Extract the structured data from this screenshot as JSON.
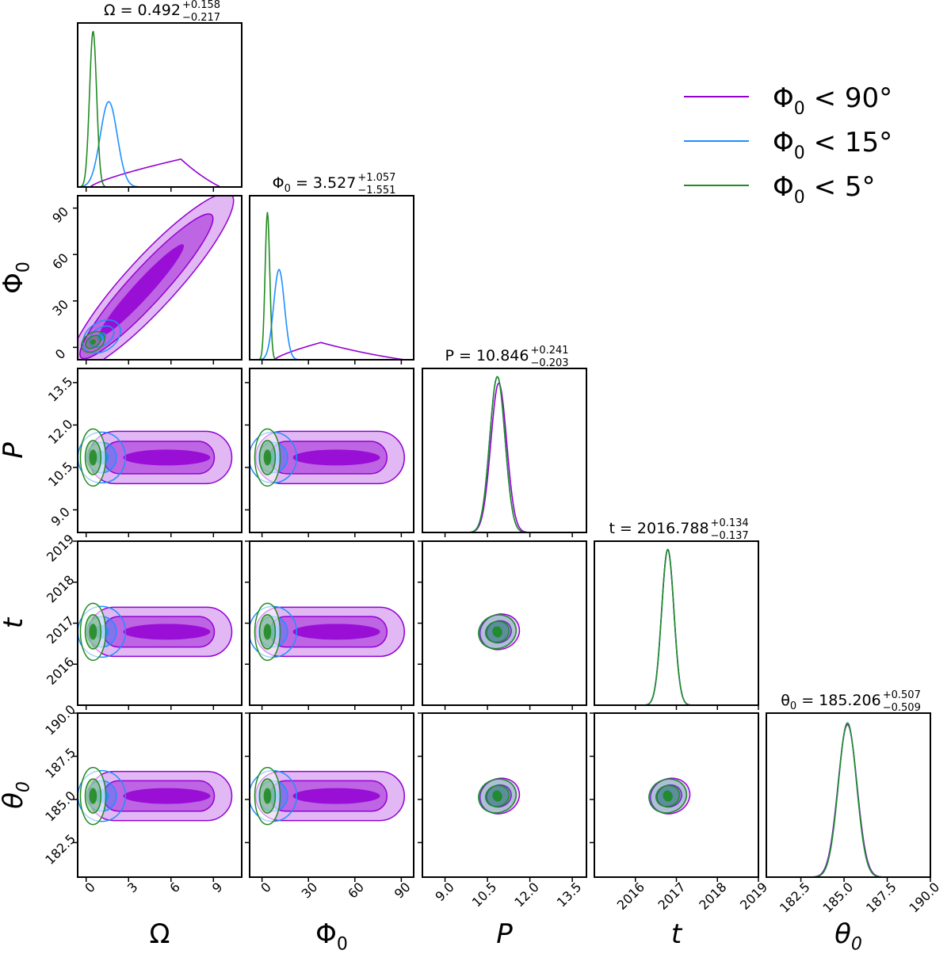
{
  "chart_data": {
    "type": "corner",
    "title": "",
    "parameters": [
      {
        "key": "omega",
        "label": "Ω",
        "range": [
          -0.6,
          11.0
        ],
        "ticks": [
          0,
          3,
          6,
          9
        ],
        "tick_labels": [
          "0",
          "3",
          "6",
          "9"
        ],
        "summary": {
          "name": "Ω",
          "value": "0.492",
          "plus": "+0.158",
          "minus": "−0.217"
        }
      },
      {
        "key": "phi0",
        "label": "Φ0",
        "range": [
          -8,
          98
        ],
        "ticks": [
          0,
          30,
          60,
          90
        ],
        "tick_labels": [
          "0",
          "30",
          "60",
          "90"
        ],
        "summary": {
          "name": "Φ0",
          "value": "3.527",
          "plus": "+1.057",
          "minus": "−1.551"
        }
      },
      {
        "key": "P",
        "label": "P",
        "range": [
          8.2,
          14.0
        ],
        "ticks": [
          9.0,
          10.5,
          12.0,
          13.5
        ],
        "tick_labels": [
          "9.0",
          "10.5",
          "12.0",
          "13.5"
        ],
        "summary": {
          "name": "P",
          "value": "10.846",
          "plus": "+0.241",
          "minus": "−0.203"
        }
      },
      {
        "key": "t",
        "label": "t",
        "range": [
          2015.0,
          2019.0
        ],
        "ticks": [
          2016,
          2017,
          2018,
          2019
        ],
        "tick_labels": [
          "2016",
          "2017",
          "2018",
          "2019"
        ],
        "summary": {
          "name": "t",
          "value": "2016.788",
          "plus": "+0.134",
          "minus": "−0.137"
        }
      },
      {
        "key": "theta0",
        "label": "θ0",
        "range": [
          180.5,
          190.0
        ],
        "ticks": [
          182.5,
          185.0,
          187.5,
          190.0
        ],
        "tick_labels": [
          "182.5",
          "185.0",
          "187.5",
          "190.0"
        ],
        "summary": {
          "name": "θ0",
          "value": "185.206",
          "plus": "+0.507",
          "minus": "−0.509"
        }
      }
    ],
    "legend": {
      "position": "top-right",
      "entries": [
        {
          "name": "Φ0 < 90°",
          "color": "#9400d3"
        },
        {
          "name": "Φ0 < 15°",
          "color": "#1e90ff"
        },
        {
          "name": "Φ0 < 5°",
          "color": "#228b22"
        }
      ]
    },
    "series": [
      {
        "name": "Φ0 < 90°",
        "color": "#9400d3",
        "hist": {
          "omega": {
            "type": "tri",
            "start": 0.3,
            "peak": 6.7,
            "end": 9.5,
            "height": 0.17
          },
          "phi0": {
            "type": "tri",
            "start": 8,
            "peak": 38,
            "end": 92,
            "height": 0.105
          },
          "P": {
            "type": "gauss",
            "mu": 10.9,
            "sigma": 0.28,
            "height": 0.91
          },
          "t": {
            "type": "gauss",
            "mu": 2016.79,
            "sigma": 0.15,
            "height": 0.95
          },
          "theta0": {
            "type": "gauss",
            "mu": 185.2,
            "sigma": 0.55,
            "height": 0.93
          }
        },
        "means": {
          "omega": 5.5,
          "phi0": 40,
          "P": 10.85,
          "t": 2016.79,
          "theta0": 185.2
        }
      },
      {
        "name": "Φ0 < 15°",
        "color": "#1e90ff",
        "hist": {
          "omega": {
            "type": "gauss",
            "mu": 1.6,
            "sigma": 0.6,
            "height": 0.52
          },
          "phi0": {
            "type": "gauss",
            "mu": 11,
            "sigma": 3.5,
            "height": 0.55
          },
          "P": {
            "type": "gauss",
            "mu": 10.85,
            "sigma": 0.27,
            "height": 0.95
          },
          "t": {
            "type": "gauss",
            "mu": 2016.79,
            "sigma": 0.15,
            "height": 0.95
          },
          "theta0": {
            "type": "gauss",
            "mu": 185.2,
            "sigma": 0.53,
            "height": 0.94
          }
        },
        "means": {
          "omega": 1.1,
          "phi0": 7,
          "P": 10.85,
          "t": 2016.79,
          "theta0": 185.2
        }
      },
      {
        "name": "Φ0 < 5°",
        "color": "#228b22",
        "hist": {
          "omega": {
            "type": "gauss",
            "mu": 0.49,
            "sigma": 0.25,
            "height": 0.95
          },
          "phi0": {
            "type": "gauss",
            "mu": 3.5,
            "sigma": 1.5,
            "height": 0.9
          },
          "P": {
            "type": "gauss",
            "mu": 10.85,
            "sigma": 0.27,
            "height": 0.95
          },
          "t": {
            "type": "gauss",
            "mu": 2016.79,
            "sigma": 0.15,
            "height": 0.95
          },
          "theta0": {
            "type": "gauss",
            "mu": 185.2,
            "sigma": 0.53,
            "height": 0.94
          }
        },
        "means": {
          "omega": 0.49,
          "phi0": 3.5,
          "P": 10.85,
          "t": 2016.79,
          "theta0": 185.2
        }
      }
    ]
  }
}
